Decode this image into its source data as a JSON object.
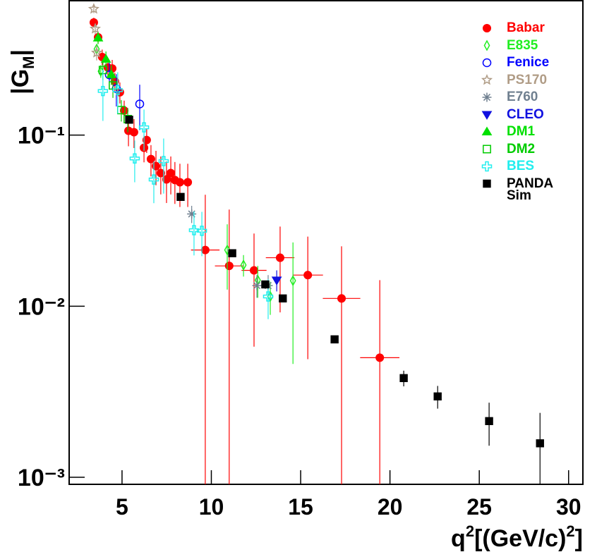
{
  "chart_data": {
    "type": "scatter",
    "xlabel": [
      "q",
      "2",
      "[(GeV/c)",
      "2",
      "]"
    ],
    "ylabel": [
      "|G",
      "M",
      "|"
    ],
    "log_y": true,
    "xlim": [
      2.04,
      30.8
    ],
    "xticks": [
      5,
      10,
      15,
      20,
      25,
      30
    ],
    "ylim": [
      0.00091,
      0.61
    ],
    "yticks": [
      {
        "value": 0.001,
        "label": "10⁻³"
      },
      {
        "value": 0.01,
        "label": "10⁻²"
      },
      {
        "value": 0.1,
        "label": "10⁻¹"
      }
    ],
    "legend": "top-right",
    "series": [
      {
        "name": "Babar",
        "color": "#ff0000",
        "marker": "circle",
        "x": [
          3.42,
          3.66,
          3.89,
          4.21,
          4.45,
          4.6,
          4.88,
          5.12,
          5.36,
          5.67,
          6.23,
          6.38,
          6.62,
          6.9,
          7.17,
          7.49,
          7.73,
          7.96,
          8.24,
          8.68,
          9.66,
          11.0,
          12.39,
          13.85,
          15.4,
          17.29,
          19.43
        ],
        "values": [
          0.455,
          0.373,
          0.286,
          0.248,
          0.245,
          0.206,
          0.178,
          0.139,
          0.106,
          0.104,
          0.0843,
          0.0936,
          0.0724,
          0.0659,
          0.06,
          0.0551,
          0.06,
          0.0546,
          0.053,
          0.053,
          0.0213,
          0.0172,
          0.0162,
          0.0192,
          0.0152,
          0.0111,
          0.005
        ],
        "yerr": [
          0.03,
          0.03,
          0.03,
          0.03,
          0.03,
          0.025,
          0.025,
          0.02,
          0.02,
          0.02,
          0.015,
          0.015,
          0.015,
          0.015,
          0.015,
          0.015,
          0.015,
          0.015,
          0.015,
          0.015,
          0.0235,
          0.0195,
          0.0104,
          0.01,
          0.0103,
          0.0113,
          0.0092
        ],
        "xerr": [
          0.05,
          0.05,
          0.05,
          0.05,
          0.05,
          0.05,
          0.05,
          0.05,
          0.05,
          0.05,
          0.1,
          0.1,
          0.1,
          0.1,
          0.1,
          0.15,
          0.15,
          0.15,
          0.15,
          0.2,
          0.8,
          0.8,
          0.7,
          0.8,
          0.85,
          1.05,
          1.1
        ]
      },
      {
        "name": "E835",
        "color": "#22ee22",
        "marker": "diamond-open",
        "x": [
          3.58,
          3.81,
          10.89,
          11.8,
          12.6,
          13.3,
          14.57
        ],
        "values": [
          0.318,
          0.236,
          0.0213,
          0.0174,
          0.0142,
          0.0114,
          0.0141
        ],
        "yerr": [
          0.02,
          0.02,
          0.0088,
          0.0025,
          0.003,
          0.0025,
          0.0095
        ]
      },
      {
        "name": "Fenice",
        "color": "#0000ff",
        "marker": "circle-open",
        "x": [
          4.29,
          4.68,
          5.99
        ],
        "values": [
          0.225,
          0.187,
          0.152
        ],
        "yerr": [
          0.04,
          0.04,
          0.045
        ]
      },
      {
        "name": "PS170",
        "color": "#b09c86",
        "marker": "star-open",
        "x": [
          3.42,
          3.5,
          3.58
        ],
        "values": [
          0.546,
          0.418,
          0.303
        ],
        "yerr": [
          0.03,
          0.03,
          0.03
        ]
      },
      {
        "name": "E760",
        "color": "#708090",
        "marker": "asterisk",
        "x": [
          8.9,
          12.55,
          13.18
        ],
        "values": [
          0.0346,
          0.0132,
          0.0132
        ],
        "yerr": [
          0.004,
          0.002,
          0.002
        ]
      },
      {
        "name": "CLEO",
        "color": "#1010e0",
        "marker": "triangle-down",
        "x": [
          13.66
        ],
        "values": [
          0.0142
        ],
        "yerr": [
          0.002
        ]
      },
      {
        "name": "DM1",
        "color": "#00e000",
        "marker": "triangle",
        "x": [
          3.66,
          4.1,
          4.4
        ],
        "values": [
          0.37,
          0.278,
          0.226
        ],
        "yerr": [
          0.03,
          0.03,
          0.03
        ]
      },
      {
        "name": "DM2",
        "color": "#00cc00",
        "marker": "square-open",
        "x": [
          3.93,
          4.49,
          4.96,
          5.32
        ],
        "values": [
          0.24,
          0.195,
          0.14,
          0.124
        ],
        "yerr": [
          0.03,
          0.03,
          0.02,
          0.02
        ]
      },
      {
        "name": "BES",
        "color": "#22eeee",
        "marker": "cross-open",
        "x": [
          3.93,
          4.76,
          5.71,
          6.23,
          6.78,
          7.33,
          9.03,
          9.47,
          13.18
        ],
        "values": [
          0.181,
          0.183,
          0.073,
          0.111,
          0.055,
          0.0705,
          0.0278,
          0.0276,
          0.0114
        ],
        "yerr": [
          0.06,
          0.05,
          0.02,
          0.03,
          0.015,
          0.025,
          0.008,
          0.008,
          0.003
        ]
      },
      {
        "name": "PANDA Sim",
        "color": "#000000",
        "marker": "square",
        "x": [
          5.4,
          8.28,
          11.17,
          13.02,
          14.0,
          16.9,
          20.77,
          22.67,
          25.55,
          28.4
        ],
        "values": [
          0.123,
          0.0435,
          0.0204,
          0.0134,
          0.0111,
          0.0064,
          0.0038,
          0.00297,
          0.00213,
          0.00158
        ],
        "yerr": [
          0.0,
          0.0,
          0.0,
          0.0,
          0.0,
          0.0,
          0.0004,
          0.00045,
          0.0006,
          0.0008
        ]
      }
    ]
  }
}
